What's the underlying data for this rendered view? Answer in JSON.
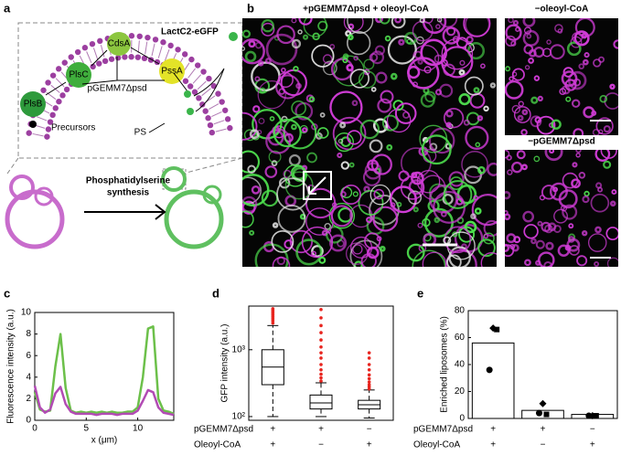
{
  "panel_labels": [
    "a",
    "b",
    "c",
    "d",
    "e"
  ],
  "diagram": {
    "lactc2": "LactC2-eGFP",
    "plsb": "PlsB",
    "plsc": "PlsC",
    "cdsa": "CdsA",
    "pssa": "PssA",
    "plasmid": "pGEMM7Δpsd",
    "precursors": "Precursors",
    "ps": "PS",
    "synthesis": [
      "Phosphatidylserine",
      "synthesis"
    ]
  },
  "micrographs": {
    "main_title": "+pGEMM7Δpsd + oleoyl-CoA",
    "side_titles": [
      "−oleoyl-CoA",
      "−pGEMM7Δpsd"
    ]
  },
  "chart_data": [
    {
      "type": "line",
      "xlabel": "x (μm)",
      "ylabel": "Fluorescence intensity (a.u.)",
      "x": [
        0,
        0.5,
        1,
        1.5,
        2,
        2.5,
        3,
        3.5,
        4,
        4.5,
        5,
        5.5,
        6,
        6.5,
        7,
        7.5,
        8,
        8.5,
        9,
        9.5,
        10,
        10.5,
        11,
        11.5,
        12,
        12.5,
        13,
        13.5
      ],
      "series": [
        {
          "color": "#6cc04a",
          "values": [
            2.6,
            1.0,
            0.8,
            0.9,
            5.0,
            8.0,
            3.0,
            0.9,
            0.7,
            0.8,
            0.7,
            0.8,
            0.7,
            0.8,
            0.7,
            0.8,
            0.7,
            0.7,
            0.8,
            0.8,
            1.2,
            4.0,
            8.5,
            8.7,
            2.0,
            0.9,
            0.8,
            0.6
          ]
        },
        {
          "color": "#b24bb4",
          "values": [
            3.2,
            1.2,
            0.7,
            1.0,
            2.5,
            3.1,
            1.5,
            0.8,
            0.6,
            0.6,
            0.6,
            0.6,
            0.5,
            0.6,
            0.6,
            0.6,
            0.5,
            0.6,
            0.6,
            0.6,
            0.9,
            1.8,
            2.8,
            2.6,
            1.2,
            0.7,
            0.6,
            0.5
          ]
        }
      ],
      "xlim": [
        0,
        13.5
      ],
      "xticks": [
        0,
        5,
        10
      ],
      "ylim": [
        0,
        10
      ],
      "yticks": [
        0,
        2,
        4,
        6,
        8,
        10
      ]
    },
    {
      "type": "box",
      "ylabel": "GFP intensity (a.u.)",
      "log_scale": true,
      "categories": [
        null,
        null,
        null
      ],
      "boxes": [
        {
          "whislo": 100,
          "q1": 300,
          "med": 550,
          "q3": 1000,
          "whishi": 2300,
          "fliers": [
            2500,
            2700,
            2900,
            3100,
            3300,
            3500,
            3700,
            3900,
            4100
          ]
        },
        {
          "whislo": 100,
          "q1": 130,
          "med": 160,
          "q3": 210,
          "whishi": 320,
          "fliers": [
            340,
            380,
            430,
            500,
            600,
            750,
            900,
            1100,
            1400,
            1800,
            2300,
            3000,
            4000
          ]
        },
        {
          "whislo": 95,
          "q1": 130,
          "med": 150,
          "q3": 175,
          "whishi": 250,
          "fliers": [
            260,
            280,
            300,
            330,
            370,
            420,
            500,
            600,
            750,
            900
          ]
        }
      ],
      "flier_color": "#e8251f",
      "ylim": [
        88,
        4500
      ],
      "yticks": [
        {
          "value": 100,
          "label": "10²"
        },
        {
          "value": 1000,
          "label": "10³"
        }
      ],
      "conditions": [
        {
          "label": "pGEMM7Δpsd",
          "marks": [
            "+",
            "+",
            "−"
          ]
        },
        {
          "label": "Oleoyl-CoA",
          "marks": [
            "+",
            "−",
            "+"
          ]
        }
      ]
    },
    {
      "type": "bar",
      "ylabel": "Enriched liposomes (%)",
      "categories": [
        null,
        null,
        null
      ],
      "values": [
        56,
        6,
        3
      ],
      "color": "#ffffff",
      "points": [
        [
          36,
          67,
          66
        ],
        [
          4,
          11,
          3
        ],
        [
          2,
          2,
          2
        ]
      ],
      "ylim": [
        0,
        80
      ],
      "yticks": [
        0,
        20,
        40,
        60,
        80
      ],
      "conditions": [
        {
          "label": "pGEMM7Δpsd",
          "marks": [
            "+",
            "+",
            "−"
          ]
        },
        {
          "label": "Oleoyl-CoA",
          "marks": [
            "+",
            "−",
            "+"
          ]
        }
      ]
    }
  ]
}
